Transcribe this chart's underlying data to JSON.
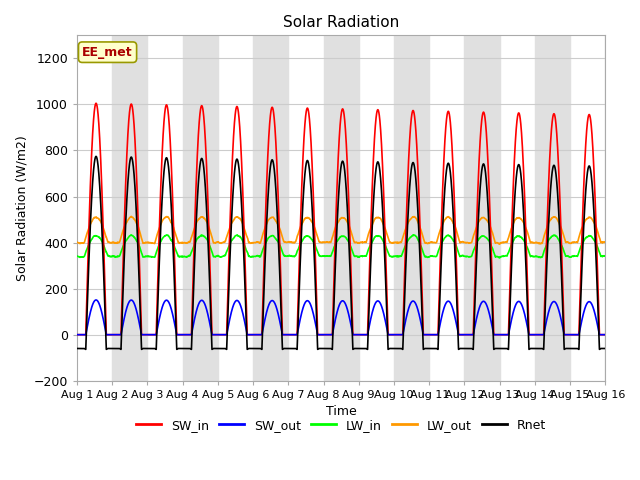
{
  "title": "Solar Radiation",
  "ylabel": "Solar Radiation (W/m2)",
  "xlabel": "Time",
  "ylim": [
    -200,
    1300
  ],
  "yticks": [
    -200,
    0,
    200,
    400,
    600,
    800,
    1000,
    1200
  ],
  "num_days": 15,
  "dt": 0.1,
  "colors": {
    "SW_in": "#ff0000",
    "SW_out": "#0000ff",
    "LW_in": "#00ff00",
    "LW_out": "#ff9900",
    "Rnet": "#000000"
  },
  "annotation_text": "EE_met",
  "annotation_color": "#aa0000",
  "annotation_bg": "#ffffcc",
  "bg_color": "#ffffff",
  "plot_bg": "#ffffff",
  "band_color": "#e0e0e0",
  "grid_color": "#cccccc",
  "line_width": 1.2
}
